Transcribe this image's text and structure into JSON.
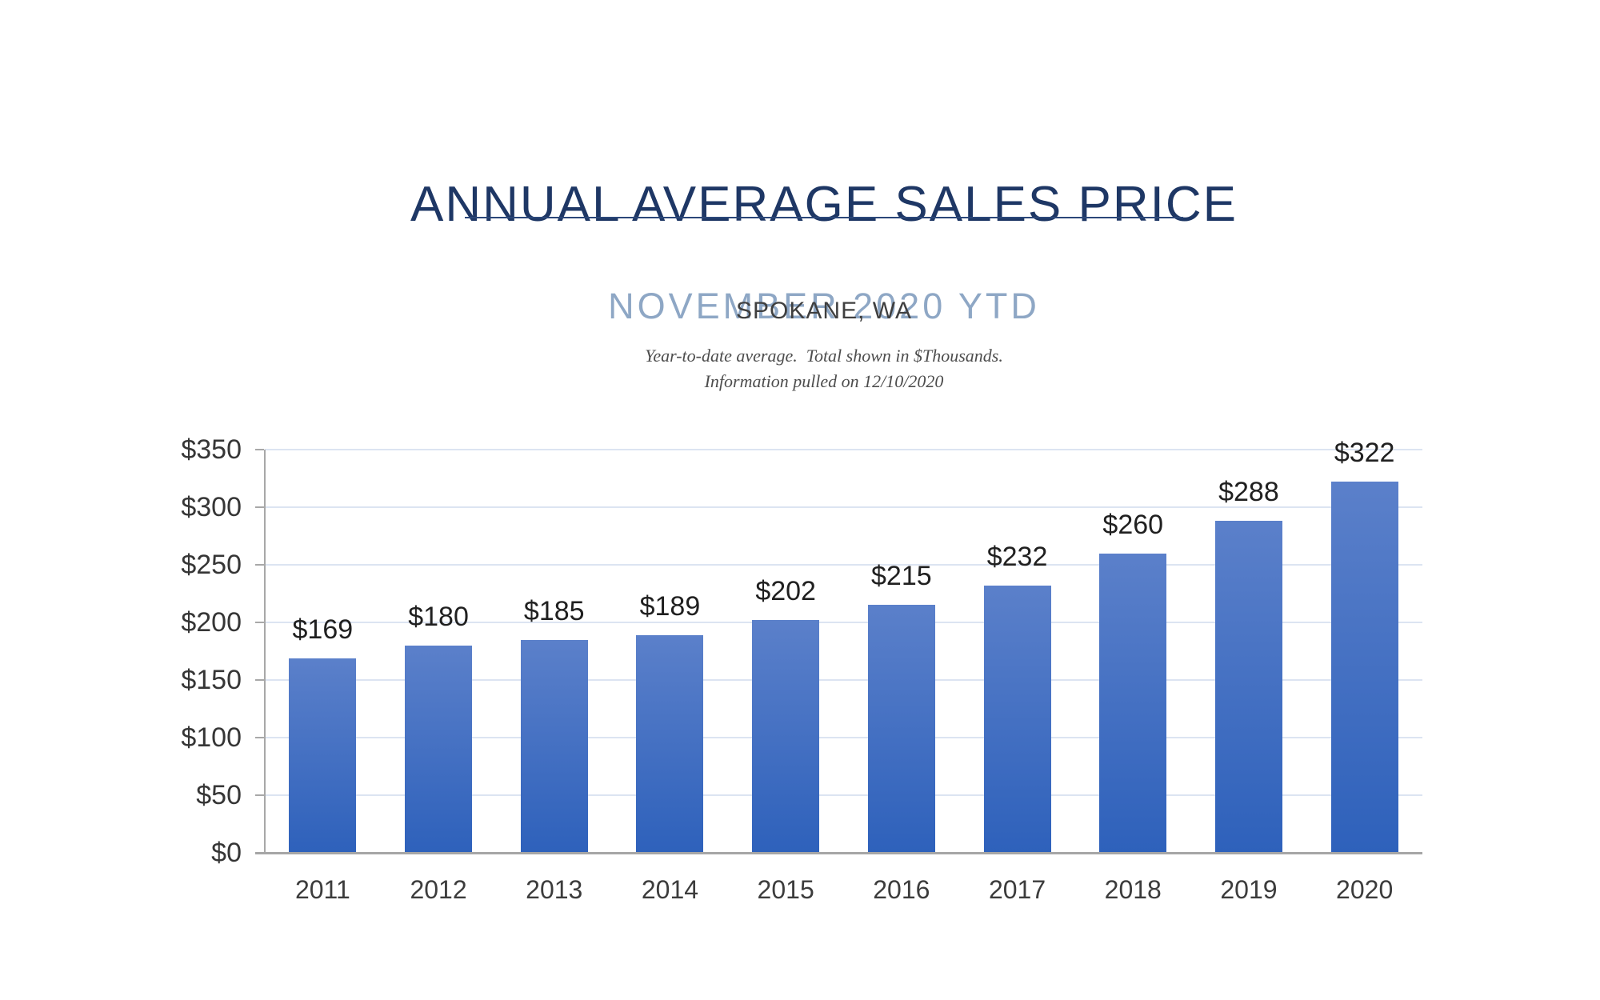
{
  "page": {
    "background": "#ffffff"
  },
  "header": {
    "title": "ANNUAL AVERAGE SALES PRICE",
    "subtitle": "NOVEMBER 2020 YTD",
    "location": "SPOKANE, WA",
    "note_line1": "Year-to-date average.  Total shown in $Thousands.",
    "note_line2": "Information pulled on 12/10/2020",
    "title_color": "#1e3765",
    "subtitle_color": "#8ea7c5",
    "underline_color": "#2b4779"
  },
  "chart_data": {
    "type": "bar",
    "title": "Annual Average Sales Price",
    "subtitle": "November 2020 YTD",
    "region": "Spokane, WA",
    "categories": [
      "2011",
      "2012",
      "2013",
      "2014",
      "2015",
      "2016",
      "2017",
      "2018",
      "2019",
      "2020"
    ],
    "values": [
      169,
      180,
      185,
      189,
      202,
      215,
      232,
      260,
      288,
      322
    ],
    "data_labels": [
      "$169",
      "$180",
      "$185",
      "$189",
      "$202",
      "$215",
      "$232",
      "$260",
      "$288",
      "$322"
    ],
    "xlabel": "",
    "ylabel": "",
    "units": "$Thousands",
    "ylim": [
      0,
      350
    ],
    "ytick_step": 50,
    "ytick_labels": [
      "$0",
      "$50",
      "$100",
      "$150",
      "$200",
      "$250",
      "$300",
      "$350"
    ],
    "grid": true,
    "legend": "none",
    "bar_color_top": "#5b80ca",
    "bar_color_bottom": "#2e61bb",
    "gridline_color": "#dce4f2",
    "axis_color": "#a8a8a8",
    "baseline_color": "#a6a6a6"
  }
}
